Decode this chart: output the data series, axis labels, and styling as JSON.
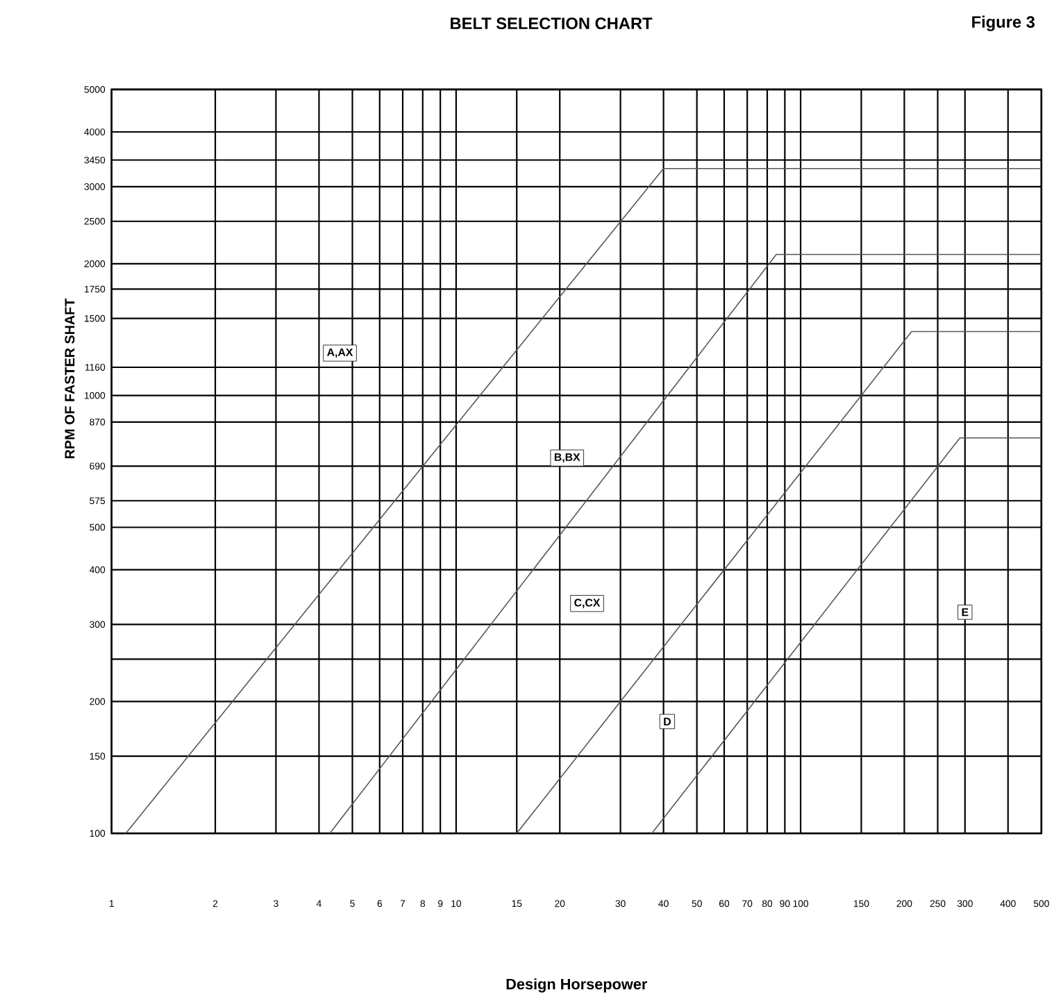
{
  "chart_data": {
    "type": "line",
    "title": "BELT SELECTION CHART",
    "xlabel": "Design Horsepower",
    "ylabel": "RPM OF FASTER SHAFT",
    "annotations": [
      "Figure 3",
      "A,AX",
      "B,BX",
      "C,CX",
      "D",
      "E"
    ],
    "log": "xy",
    "grid": true,
    "marker": "none",
    "line_style": "solid",
    "xlim": [
      1,
      500
    ],
    "ylim": [
      100,
      5000
    ],
    "xticks": [
      1,
      2,
      3,
      4,
      5,
      6,
      7,
      8,
      9,
      10,
      15,
      20,
      30,
      40,
      50,
      60,
      70,
      80,
      90,
      100,
      150,
      200,
      250,
      300,
      400,
      500
    ],
    "yticks": [
      100,
      150,
      200,
      {
        "value": 250,
        "label": null
      },
      300,
      400,
      500,
      575,
      690,
      870,
      1000,
      1160,
      1500,
      1750,
      2000,
      2500,
      3000,
      3450,
      4000,
      5000
    ],
    "series": [
      {
        "color": "#555555",
        "x": [
          1.1,
          40,
          500
        ],
        "values": [
          100,
          3300,
          3300
        ]
      },
      {
        "color": "#555555",
        "x": [
          4.3,
          85,
          500
        ],
        "values": [
          100,
          2100,
          2100
        ]
      },
      {
        "color": "#555555",
        "x": [
          15,
          210,
          500
        ],
        "values": [
          100,
          1400,
          1400
        ]
      },
      {
        "color": "#555555",
        "x": [
          37,
          290,
          500
        ],
        "values": [
          100,
          800,
          800
        ]
      }
    ]
  }
}
